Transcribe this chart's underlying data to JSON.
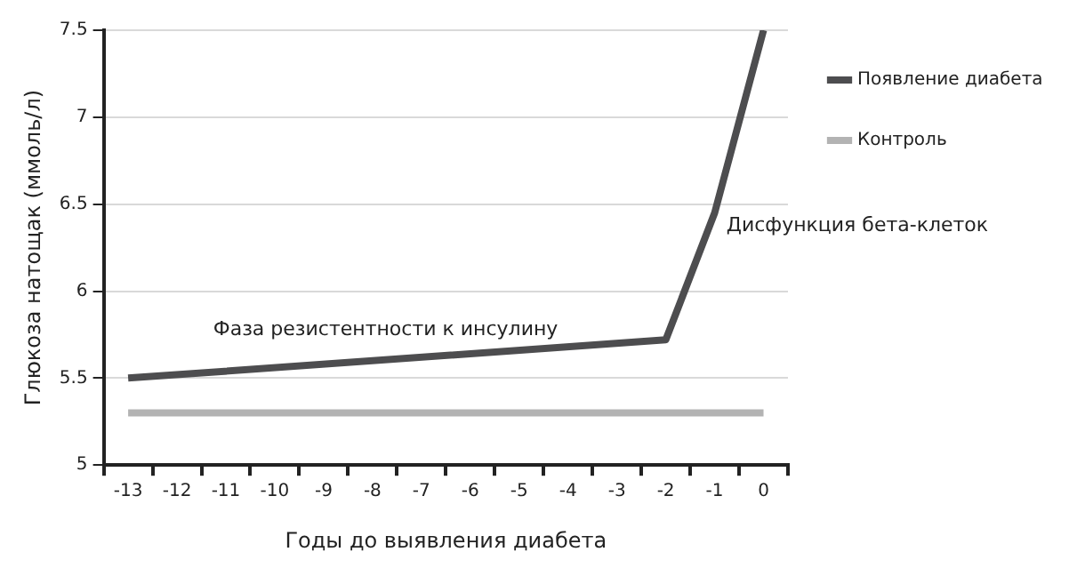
{
  "chart_data": {
    "type": "line",
    "xlabel": "Годы до выявления диабета",
    "ylabel": "Глюкоза натощак (ммоль/л)",
    "categories": [
      "-13",
      "-12",
      "-11",
      "-10",
      "-9",
      "-8",
      "-7",
      "-6",
      "-5",
      "-4",
      "-3",
      "-2",
      "-1",
      "0"
    ],
    "series": [
      {
        "name": "Появление диабета",
        "color": "#4d4d4f",
        "values": [
          5.5,
          null,
          null,
          null,
          null,
          null,
          null,
          null,
          null,
          null,
          null,
          5.72,
          6.45,
          7.5
        ]
      },
      {
        "name": "Контроль",
        "color": "#b3b3b3",
        "values": [
          5.3,
          null,
          null,
          null,
          null,
          null,
          null,
          null,
          null,
          null,
          null,
          null,
          null,
          5.3
        ]
      }
    ],
    "ylim": [
      5,
      7.5
    ],
    "yticks": [
      5,
      5.5,
      6,
      6.5,
      7,
      7.5
    ],
    "grid": "y",
    "legend": "top right",
    "marker": "none",
    "line_style": "solid",
    "annotations": [
      "Фаза резистентности к инсулину",
      "Дисфункция бета-клеток"
    ]
  }
}
